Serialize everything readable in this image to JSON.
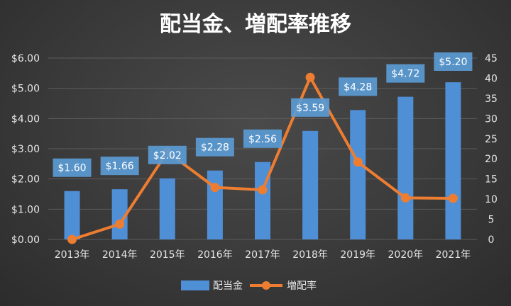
{
  "chart_data": {
    "type": "bar",
    "title": "配当金、増配率推移",
    "categories": [
      "2013年",
      "2014年",
      "2015年",
      "2016年",
      "2017年",
      "2018年",
      "2019年",
      "2020年",
      "2021年"
    ],
    "series": [
      {
        "name": "配当金",
        "type": "bar",
        "axis": "left",
        "values": [
          1.6,
          1.66,
          2.02,
          2.28,
          2.56,
          3.59,
          4.28,
          4.72,
          5.2
        ],
        "labels": [
          "$1.60",
          "$1.66",
          "$2.02",
          "$2.28",
          "$2.56",
          "$3.59",
          "$4.28",
          "$4.72",
          "$5.20"
        ],
        "color": "#4f8fd6"
      },
      {
        "name": "増配率",
        "type": "line",
        "axis": "right",
        "values": [
          0,
          3.8,
          21.7,
          12.9,
          12.3,
          40.2,
          19.2,
          10.3,
          10.2
        ],
        "color": "#ed7d31"
      }
    ],
    "y_left": {
      "ylim": [
        0,
        6
      ],
      "ticks": [
        0,
        1,
        2,
        3,
        4,
        5,
        6
      ],
      "tick_labels": [
        "$0.00",
        "$1.00",
        "$2.00",
        "$3.00",
        "$4.00",
        "$5.00",
        "$6.00"
      ]
    },
    "y_right": {
      "ylim": [
        0,
        45
      ],
      "ticks": [
        0,
        5,
        10,
        15,
        20,
        25,
        30,
        35,
        40,
        45
      ],
      "tick_labels": [
        "0",
        "5",
        "10",
        "15",
        "20",
        "25",
        "30",
        "35",
        "40",
        "45"
      ]
    },
    "grid": true,
    "legend": "bottom",
    "label_box_color": "#5b9bd5"
  }
}
